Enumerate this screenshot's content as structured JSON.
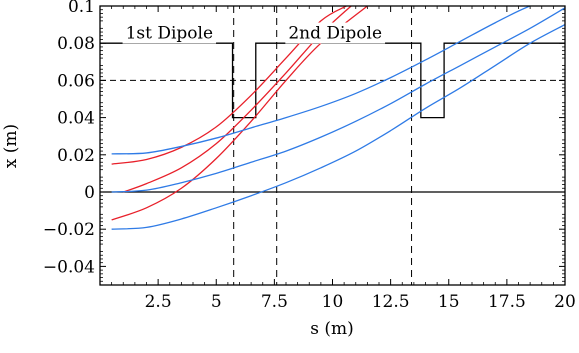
{
  "chart_data": {
    "type": "line",
    "title": "",
    "xlabel": "s (m)",
    "ylabel": "x (m)",
    "xlim": [
      0,
      20
    ],
    "ylim": [
      -0.05,
      0.1
    ],
    "x_ticks": [
      2.5,
      5,
      7.5,
      10,
      12.5,
      15,
      17.5,
      20
    ],
    "x_tick_labels": [
      "2.5",
      "5",
      "7.5",
      "10",
      "12.5",
      "15",
      "17.5",
      "20"
    ],
    "y_ticks": [
      -0.04,
      -0.02,
      0,
      0.02,
      0.04,
      0.06,
      0.08,
      0.1
    ],
    "y_tick_labels": [
      "−0.04",
      "−0.02",
      "0",
      "0.02",
      "0.04",
      "0.06",
      "0.08",
      "0.1"
    ],
    "grid": false,
    "legend": "none",
    "annotations": [
      {
        "text": "1st Dipole",
        "x": 1.1,
        "y": 0.0825
      },
      {
        "text": "2nd Dipole",
        "x": 8.1,
        "y": 0.0825
      }
    ],
    "vertical_lines": [
      5.75,
      7.6,
      13.4
    ],
    "horizontal_dashed": [
      0.06
    ],
    "horizontal_solid": [
      0
    ],
    "aperture_profile": {
      "x": [
        0,
        5.7,
        5.7,
        6.7,
        6.7,
        13.8,
        13.8,
        14.8,
        14.8,
        20
      ],
      "y": [
        0.08,
        0.08,
        0.04,
        0.04,
        0.08,
        0.08,
        0.04,
        0.04,
        0.08,
        0.08
      ]
    },
    "colors": {
      "red": "#e8202a",
      "blue": "#2f7be6",
      "black": "#000000"
    },
    "series": [
      {
        "color": "#e8202a",
        "x": [
          0.5,
          2,
          3.5,
          5,
          6.5,
          8,
          9.5,
          10.6
        ],
        "y": [
          0.015,
          0.0175,
          0.024,
          0.035,
          0.052,
          0.072,
          0.092,
          0.1
        ]
      },
      {
        "color": "#e8202a",
        "x": [
          0.5,
          2,
          3.5,
          5,
          6.5,
          8,
          9.5,
          11.5
        ],
        "y": [
          -0.015,
          -0.0085,
          0.002,
          0.018,
          0.038,
          0.06,
          0.08,
          0.1
        ]
      },
      {
        "color": "#e8202a",
        "x": [
          1,
          2,
          3.5,
          5,
          6.5,
          8,
          9.5,
          10.8
        ],
        "y": [
          0,
          0.0045,
          0.013,
          0.026,
          0.044,
          0.064,
          0.085,
          0.1
        ]
      },
      {
        "color": "#2f7be6",
        "x": [
          0.5,
          2,
          3.5,
          5,
          6.5,
          8,
          9.5,
          11,
          12.5,
          14,
          15.5,
          17,
          18.5,
          20
        ],
        "y": [
          0.0205,
          0.021,
          0.0245,
          0.029,
          0.0345,
          0.04,
          0.046,
          0.053,
          0.0615,
          0.071,
          0.081,
          0.091,
          0.1,
          0.105
        ]
      },
      {
        "color": "#2f7be6",
        "x": [
          0.5,
          2,
          3.5,
          5,
          6.5,
          8,
          9.5,
          11,
          12.5,
          14,
          15.5,
          17,
          18.5,
          20
        ],
        "y": [
          -0.02,
          -0.019,
          -0.0145,
          -0.0085,
          -0.002,
          0.005,
          0.013,
          0.022,
          0.033,
          0.045,
          0.056,
          0.068,
          0.08,
          0.09
        ]
      },
      {
        "color": "#2f7be6",
        "x": [
          0.5,
          2,
          3.5,
          5,
          6.5,
          8,
          9.5,
          11,
          12.5,
          14,
          15.5,
          17,
          18.5,
          20
        ],
        "y": [
          0,
          0.001,
          0.005,
          0.01,
          0.016,
          0.022,
          0.0295,
          0.038,
          0.0475,
          0.058,
          0.068,
          0.078,
          0.088,
          0.099
        ]
      }
    ]
  }
}
